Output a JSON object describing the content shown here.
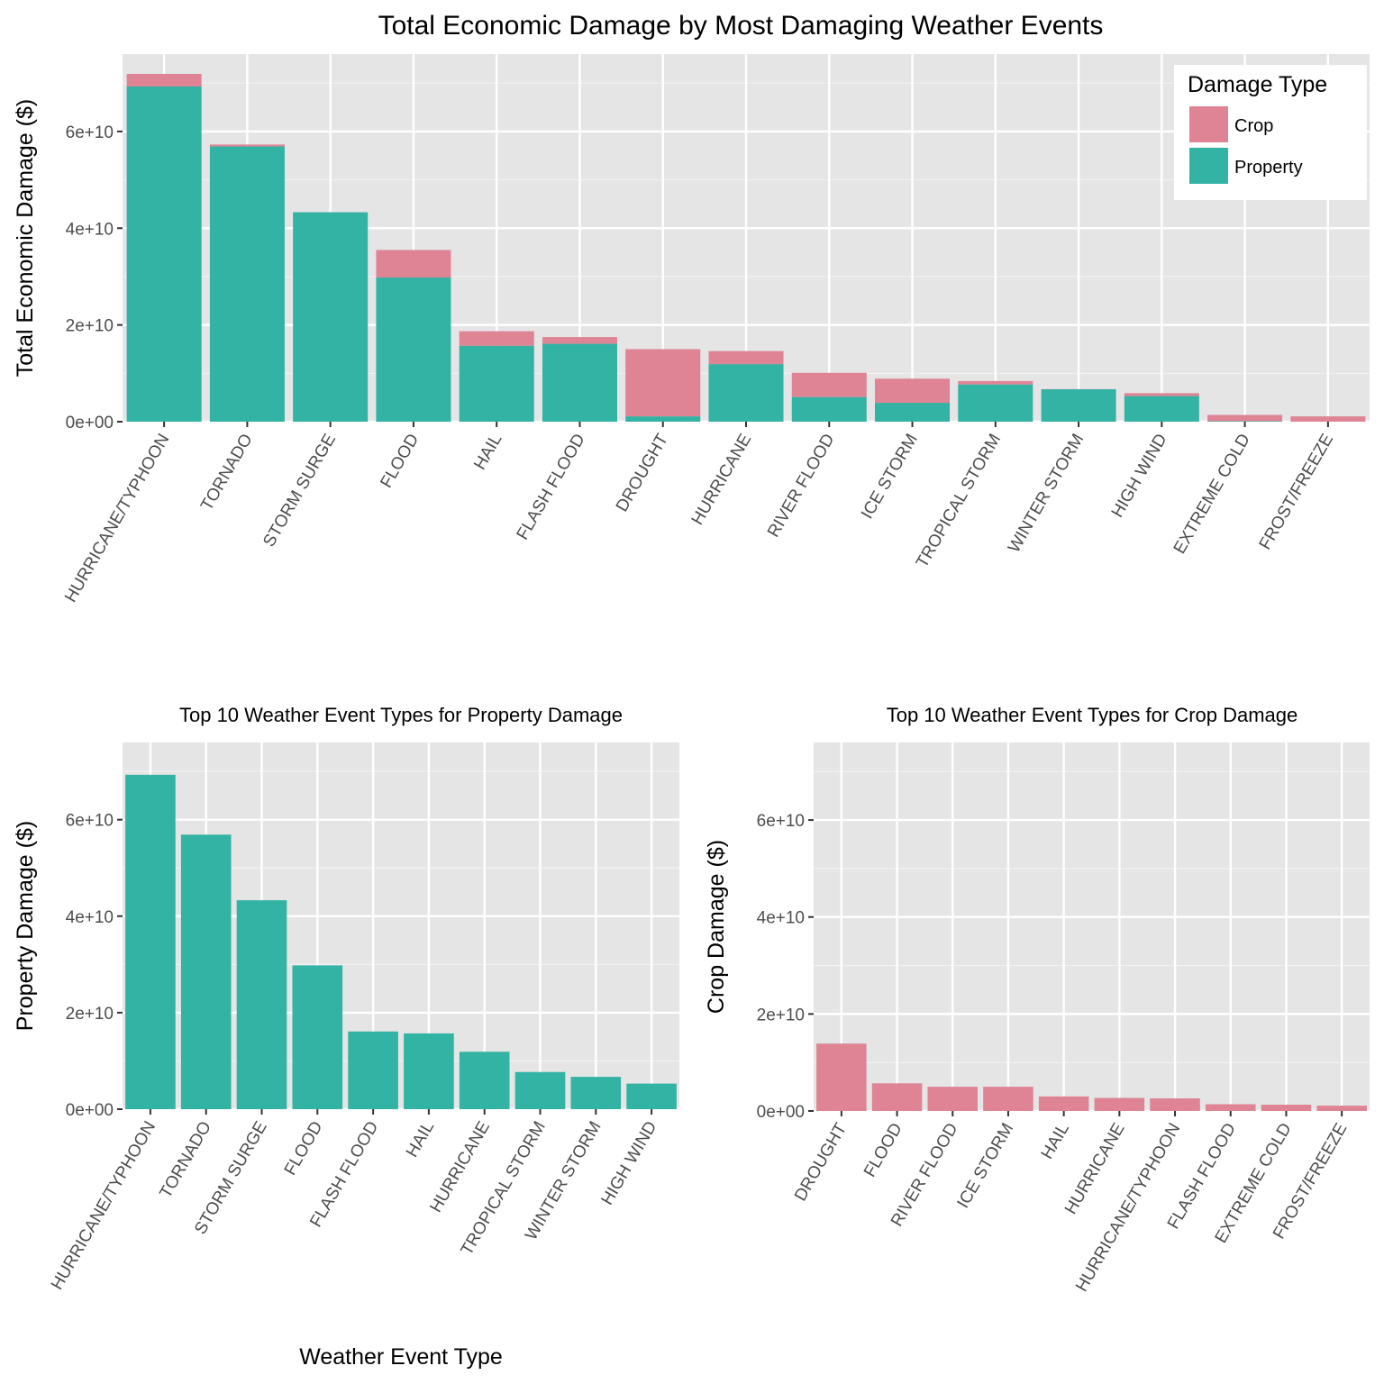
{
  "figure_title": "Total Economic Damage by Most Damaging Weather Events",
  "chart_data": [
    {
      "type": "bar",
      "stacked": true,
      "categories": [
        "HURRICANE/TYPHOON",
        "TORNADO",
        "STORM SURGE",
        "FLOOD",
        "HAIL",
        "FLASH FLOOD",
        "DROUGHT",
        "HURRICANE",
        "RIVER FLOOD",
        "ICE STORM",
        "TROPICAL STORM",
        "WINTER STORM",
        "HIGH WIND",
        "EXTREME COLD",
        "FROST/FREEZE"
      ],
      "series": [
        {
          "name": "Property",
          "values": [
            69300000000.0,
            56900000000.0,
            43300000000.0,
            29800000000.0,
            15700000000.0,
            16100000000.0,
            1100000000.0,
            11900000000.0,
            5100000000.0,
            3900000000.0,
            7700000000.0,
            6700000000.0,
            5300000000.0,
            100000000.0,
            0.0
          ]
        },
        {
          "name": "Crop",
          "values": [
            2600000000.0,
            400000000.0,
            0.0,
            5700000000.0,
            3000000000.0,
            1400000000.0,
            13900000000.0,
            2700000000.0,
            5000000000.0,
            5000000000.0,
            700000000.0,
            30000000.0,
            600000000.0,
            1300000000.0,
            1100000000.0
          ]
        }
      ],
      "colors": {
        "Property": "#33b3a3",
        "Crop": "#de8495"
      },
      "xlabel": "",
      "ylabel": "Total Economic Damage ($)",
      "ylim": [
        0,
        76000000000.0
      ],
      "yticks": [
        0,
        20000000000.0,
        40000000000.0,
        60000000000.0
      ],
      "ytick_labels": [
        "0e+00",
        "2e+10",
        "4e+10",
        "6e+10"
      ],
      "legend": {
        "title": "Damage Type",
        "placement": "top-right",
        "items": [
          "Crop",
          "Property"
        ]
      },
      "grid": true
    },
    {
      "type": "bar",
      "title": "Top 10 Weather Event Types for Property Damage",
      "categories": [
        "HURRICANE/TYPHOON",
        "TORNADO",
        "STORM SURGE",
        "FLOOD",
        "FLASH FLOOD",
        "HAIL",
        "HURRICANE",
        "TROPICAL STORM",
        "WINTER STORM",
        "HIGH WIND"
      ],
      "values": [
        69300000000.0,
        56900000000.0,
        43300000000.0,
        29800000000.0,
        16100000000.0,
        15700000000.0,
        11900000000.0,
        7700000000.0,
        6700000000.0,
        5300000000.0
      ],
      "color": "#33b3a3",
      "xlabel": "Weather Event Type",
      "ylabel": "Property Damage ($)",
      "ylim": [
        0,
        76000000000.0
      ],
      "yticks": [
        0,
        20000000000.0,
        40000000000.0,
        60000000000.0
      ],
      "ytick_labels": [
        "0e+00",
        "2e+10",
        "4e+10",
        "6e+10"
      ],
      "grid": true
    },
    {
      "type": "bar",
      "title": "Top 10 Weather Event Types for Crop Damage",
      "categories": [
        "DROUGHT",
        "FLOOD",
        "RIVER FLOOD",
        "ICE STORM",
        "HAIL",
        "HURRICANE",
        "HURRICANE/TYPHOON",
        "FLASH FLOOD",
        "EXTREME COLD",
        "FROST/FREEZE"
      ],
      "values": [
        13900000000.0,
        5700000000.0,
        5000000000.0,
        5000000000.0,
        3000000000.0,
        2700000000.0,
        2600000000.0,
        1400000000.0,
        1300000000.0,
        1100000000.0
      ],
      "color": "#de8495",
      "xlabel": "",
      "ylabel": "Crop Damage ($)",
      "ylim": [
        0,
        76000000000.0
      ],
      "yticks": [
        0,
        20000000000.0,
        40000000000.0,
        60000000000.0
      ],
      "ytick_labels": [
        "0e+00",
        "2e+10",
        "4e+10",
        "6e+10"
      ],
      "grid": true
    }
  ]
}
